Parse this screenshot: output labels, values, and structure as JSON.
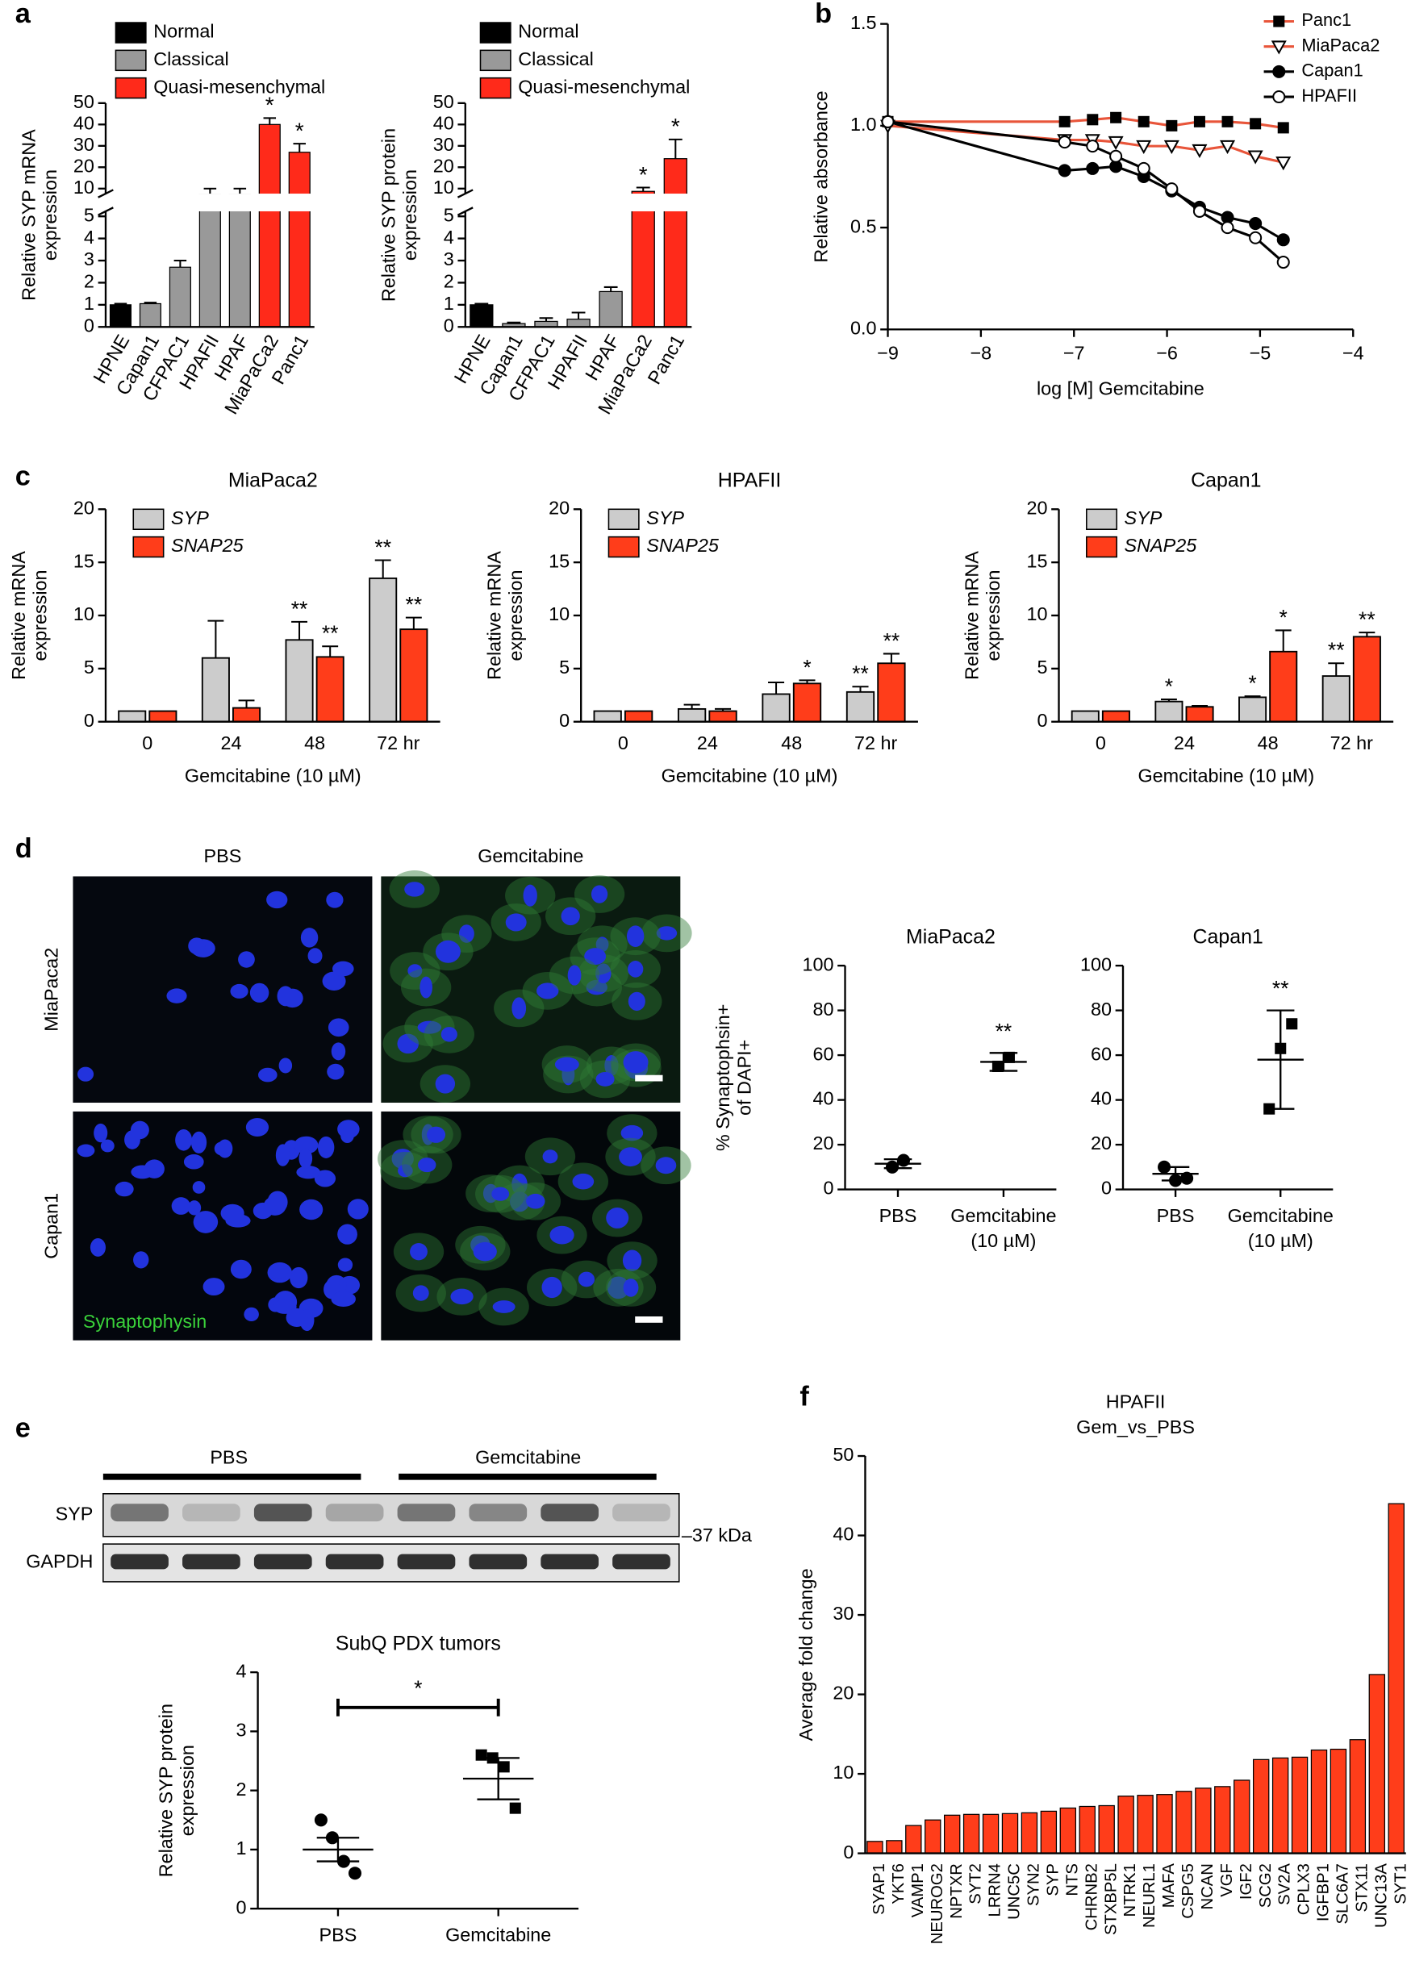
{
  "panels": {
    "labels": [
      "a",
      "b",
      "c",
      "d",
      "e",
      "f"
    ]
  },
  "micrographs": {
    "columns": [
      "PBS",
      "Gemcitabine"
    ],
    "rows": [
      "MiaPaca2",
      "Capan1"
    ],
    "stain": "Synaptophysin"
  },
  "blot": {
    "groups": [
      "PBS",
      "Gemcitabine"
    ],
    "lanes": [
      "SYP",
      "GAPDH"
    ],
    "marker": "–37 kDa"
  },
  "chart_data": [
    {
      "type": "bar",
      "categories": [
        "HPNE",
        "Capan1",
        "CFPAC1",
        "HPAFII",
        "HPAF",
        "MiaPaCa2",
        "Panc1"
      ],
      "values": [
        1,
        1.05,
        2.7,
        9,
        9,
        40,
        27
      ],
      "errors": [
        0.05,
        0.05,
        0.3,
        1,
        1,
        3,
        4
      ],
      "stars": [
        null,
        null,
        null,
        null,
        null,
        "*",
        "*"
      ],
      "colors": [
        "#000000",
        "#999999",
        "#999999",
        "#999999",
        "#999999",
        "#ff2a1a",
        "#ff2a1a"
      ],
      "legend": [
        {
          "name": "Normal",
          "color": "#000000"
        },
        {
          "name": "Classical",
          "color": "#999999"
        },
        {
          "name": "Quasi-mesenchymal",
          "color": "#ff2a1a"
        }
      ],
      "ylabel": [
        "Relative SYP mRNA",
        "expression"
      ],
      "ylim": [
        0,
        50
      ],
      "axis_break": [
        5,
        10
      ],
      "yticks": [
        0,
        1,
        2,
        3,
        4,
        5,
        10,
        20,
        30,
        40,
        50
      ]
    },
    {
      "type": "bar",
      "categories": [
        "HPNE",
        "Capan1",
        "CFPAC1",
        "HPAFII",
        "HPAF",
        "MiaPaCa2",
        "Panc1"
      ],
      "values": [
        1,
        0.15,
        0.25,
        0.35,
        1.6,
        9.5,
        24
      ],
      "errors": [
        0.05,
        0.05,
        0.15,
        0.3,
        0.2,
        1,
        9
      ],
      "stars": [
        null,
        null,
        null,
        null,
        null,
        "*",
        "*"
      ],
      "colors": [
        "#000000",
        "#999999",
        "#999999",
        "#999999",
        "#999999",
        "#ff2a1a",
        "#ff2a1a"
      ],
      "legend": [
        {
          "name": "Normal",
          "color": "#000000"
        },
        {
          "name": "Classical",
          "color": "#999999"
        },
        {
          "name": "Quasi-mesenchymal",
          "color": "#ff2a1a"
        }
      ],
      "ylabel": [
        "Relative SYP protein",
        "expression"
      ],
      "ylim": [
        0,
        50
      ],
      "axis_break": [
        5,
        10
      ],
      "yticks": [
        0,
        1,
        2,
        3,
        4,
        5,
        10,
        20,
        30,
        40,
        50
      ]
    },
    {
      "type": "line",
      "x": [
        -9,
        -7.1,
        -6.8,
        -6.55,
        -6.25,
        -5.95,
        -5.65,
        -5.35,
        -5.05,
        -4.75
      ],
      "xlim": [
        -9,
        -4
      ],
      "xticks": [
        {
          "value": -9,
          "label": "−9"
        },
        {
          "value": -8,
          "label": "−8"
        },
        {
          "value": -7,
          "label": "−7"
        },
        {
          "value": -6,
          "label": "−6"
        },
        {
          "value": -5,
          "label": "−5"
        },
        {
          "value": -4,
          "label": "−4"
        }
      ],
      "ylim": [
        0,
        1.5
      ],
      "yticks": [
        {
          "value": 0,
          "label": "0.0"
        },
        0.5,
        {
          "value": 1,
          "label": "1.0"
        },
        1.5
      ],
      "xlabel": "log [M] Gemcitabine",
      "ylabel": [
        "Relative absorbance"
      ],
      "legend": "upper right",
      "series": [
        {
          "name": "Panc1",
          "color": "#e8553a",
          "marker": "square",
          "values": [
            1.02,
            1.02,
            1.03,
            1.04,
            1.02,
            1.0,
            1.02,
            1.02,
            1.01,
            0.99
          ]
        },
        {
          "name": "MiaPaca2",
          "color": "#e8553a",
          "marker": "triangle-open",
          "values": [
            1.0,
            0.93,
            0.93,
            0.92,
            0.9,
            0.9,
            0.88,
            0.9,
            0.85,
            0.82
          ]
        },
        {
          "name": "Capan1",
          "color": "#000000",
          "marker": "circle",
          "values": [
            1.02,
            0.78,
            0.79,
            0.8,
            0.75,
            0.68,
            0.6,
            0.55,
            0.52,
            0.44
          ]
        },
        {
          "name": "HPAFII",
          "color": "#000000",
          "marker": "circle-open",
          "values": [
            1.02,
            0.92,
            0.9,
            0.85,
            0.79,
            0.69,
            0.58,
            0.5,
            0.45,
            0.33
          ]
        }
      ]
    },
    {
      "type": "grouped_bar",
      "title": "MiaPaca2",
      "categories": [
        "0",
        "24",
        "48",
        "72 hr"
      ],
      "xlabel": "Gemcitabine (10 µM)",
      "ylabel": [
        "Relative mRNA",
        "expression"
      ],
      "ylim": [
        0,
        20
      ],
      "yticks": [
        0,
        5,
        10,
        15,
        20
      ],
      "series": [
        {
          "name": "SYP",
          "color": "#cccccc",
          "values": [
            1,
            6,
            7.7,
            13.5
          ],
          "errors": [
            0,
            3.5,
            1.7,
            1.7
          ],
          "stars": [
            null,
            null,
            "**",
            "**"
          ]
        },
        {
          "name": "SNAP25",
          "color": "#ff3d1a",
          "values": [
            1,
            1.3,
            6.1,
            8.7
          ],
          "errors": [
            0,
            0.7,
            1,
            1.1
          ],
          "stars": [
            null,
            null,
            "**",
            "**"
          ]
        }
      ]
    },
    {
      "type": "grouped_bar",
      "title": "HPAFII",
      "categories": [
        "0",
        "24",
        "48",
        "72 hr"
      ],
      "xlabel": "Gemcitabine (10 µM)",
      "ylabel": [
        "Relative mRNA",
        "expression"
      ],
      "ylim": [
        0,
        20
      ],
      "yticks": [
        0,
        5,
        10,
        15,
        20
      ],
      "series": [
        {
          "name": "SYP",
          "color": "#cccccc",
          "values": [
            1,
            1.2,
            2.6,
            2.8
          ],
          "errors": [
            0,
            0.4,
            1.1,
            0.5
          ],
          "stars": [
            null,
            null,
            null,
            "**"
          ]
        },
        {
          "name": "SNAP25",
          "color": "#ff3d1a",
          "values": [
            1,
            1,
            3.6,
            5.5
          ],
          "errors": [
            0,
            0.2,
            0.3,
            0.9
          ],
          "stars": [
            null,
            null,
            "*",
            "**"
          ]
        }
      ]
    },
    {
      "type": "grouped_bar",
      "title": "Capan1",
      "categories": [
        "0",
        "24",
        "48",
        "72 hr"
      ],
      "xlabel": "Gemcitabine (10 µM)",
      "ylabel": [
        "Relative mRNA",
        "expression"
      ],
      "ylim": [
        0,
        20
      ],
      "yticks": [
        0,
        5,
        10,
        15,
        20
      ],
      "series": [
        {
          "name": "SYP",
          "color": "#cccccc",
          "values": [
            1,
            1.9,
            2.3,
            4.3
          ],
          "errors": [
            0,
            0.2,
            0.1,
            1.2
          ],
          "stars": [
            null,
            "*",
            "*",
            "**"
          ]
        },
        {
          "name": "SNAP25",
          "color": "#ff3d1a",
          "values": [
            1,
            1.4,
            6.6,
            8.0
          ],
          "errors": [
            0,
            0.1,
            2,
            0.4
          ],
          "stars": [
            null,
            null,
            "*",
            "**"
          ]
        }
      ]
    },
    {
      "type": "dot",
      "title": "MiaPaca2",
      "categories": [
        "PBS",
        [
          "Gemcitabine",
          "(10 µM)"
        ]
      ],
      "points": [
        [
          10,
          13
        ],
        [
          55,
          59
        ]
      ],
      "markers": [
        "circle",
        "square"
      ],
      "means": [
        11.5,
        57
      ],
      "errors": [
        2,
        4
      ],
      "stars": [
        null,
        "**"
      ],
      "ylabel": [
        "% Synaptophsin+",
        "of DAPI+"
      ],
      "ylim": [
        0,
        100
      ],
      "yticks": [
        0,
        20,
        40,
        60,
        80,
        100
      ]
    },
    {
      "type": "dot",
      "title": "Capan1",
      "categories": [
        "PBS",
        [
          "Gemcitabine",
          "(10 µM)"
        ]
      ],
      "points": [
        [
          10,
          4,
          5
        ],
        [
          36,
          63,
          74
        ]
      ],
      "markers": [
        "circle",
        "square"
      ],
      "means": [
        7,
        58
      ],
      "errors": [
        3,
        22
      ],
      "stars": [
        null,
        "**"
      ],
      "ylim": [
        0,
        100
      ],
      "yticks": [
        0,
        20,
        40,
        60,
        80,
        100
      ]
    },
    {
      "type": "dot",
      "title": "SubQ PDX tumors",
      "categories": [
        "PBS",
        "Gemcitabine"
      ],
      "points": [
        [
          1.5,
          1.2,
          0.8,
          0.6
        ],
        [
          2.6,
          2.55,
          2.4,
          1.7
        ]
      ],
      "markers": [
        "circle",
        "square"
      ],
      "means": [
        1.0,
        2.2
      ],
      "errors": [
        0.2,
        0.35
      ],
      "bracket": "*",
      "ylabel": [
        "Relative SYP protein",
        "expression"
      ],
      "ylim": [
        0,
        4
      ],
      "yticks": [
        0,
        1,
        2,
        3,
        4
      ]
    },
    {
      "type": "bar",
      "title": [
        "HPAFII",
        "Gem_vs_PBS"
      ],
      "categories": [
        "SYAP1",
        "YKT6",
        "VAMP1",
        "NEUROG2",
        "NPTXR",
        "SYT2",
        "LRRN4",
        "UNC5C",
        "SYN2",
        "SYP",
        "NTS",
        "CHRNB2",
        "STXBP5L",
        "NTRK1",
        "NEURL1",
        "MAFA",
        "CSPG5",
        "NCAN",
        "VGF",
        "IGF2",
        "SCG2",
        "SV2A",
        "CPLX3",
        "IGFBP1",
        "SLC6A7",
        "STX11",
        "UNC13A",
        "SYT1"
      ],
      "values": [
        1.5,
        1.6,
        3.5,
        4.2,
        4.8,
        4.9,
        4.9,
        5.0,
        5.1,
        5.3,
        5.7,
        5.9,
        6.0,
        7.2,
        7.3,
        7.4,
        7.8,
        8.2,
        8.4,
        9.2,
        11.8,
        12.0,
        12.1,
        13.0,
        13.1,
        14.3,
        22.5,
        44
      ],
      "color": "#ff3d1a",
      "ylabel": [
        "Average fold change"
      ],
      "ylim": [
        0,
        50
      ],
      "yticks": [
        0,
        10,
        20,
        30,
        40,
        50
      ]
    }
  ]
}
